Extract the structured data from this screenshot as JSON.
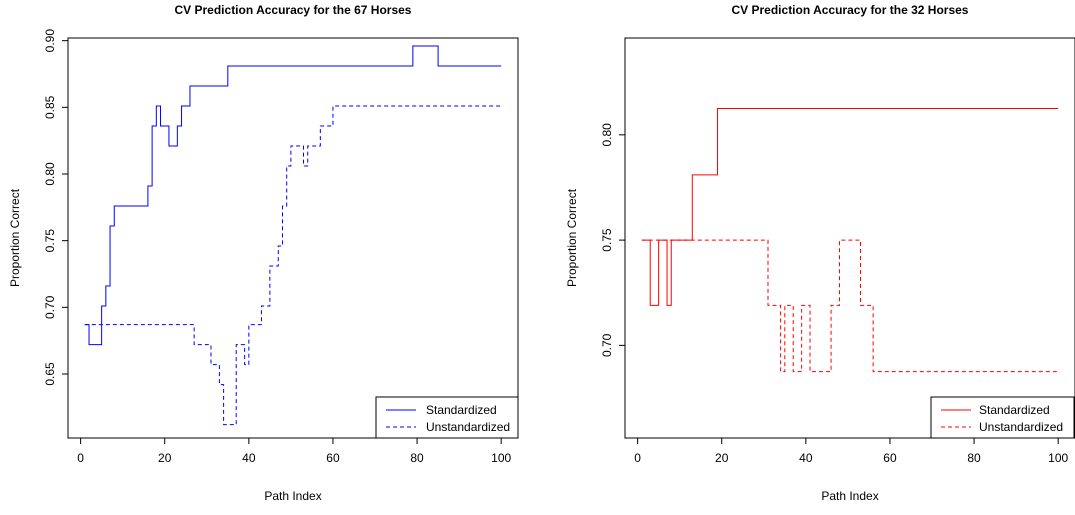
{
  "colors": {
    "left": "#0000ff",
    "right": "#ff0000",
    "axis": "#000000"
  },
  "chart_data": [
    {
      "type": "line",
      "title": "CV Prediction Accuracy for the 67 Horses",
      "xlabel": "Path Index",
      "ylabel": "Proportion Correct",
      "xticks": [
        "0",
        "20",
        "40",
        "60",
        "80",
        "100"
      ],
      "yticks": [
        "0.65",
        "0.70",
        "0.75",
        "0.80",
        "0.85",
        "0.90"
      ],
      "xlim": [
        -3,
        104
      ],
      "ylim": [
        0.602,
        0.902
      ],
      "legend_position": "bottom-right",
      "series": [
        {
          "name": "Standardized",
          "style": "solid",
          "color": "#0000ff",
          "x": [
            1,
            2,
            3,
            4,
            5,
            6,
            7,
            8,
            9,
            15,
            16,
            17,
            18,
            19,
            20,
            21,
            22,
            23,
            24,
            25,
            26,
            27,
            34,
            35,
            78,
            79,
            84,
            85,
            100
          ],
          "y": [
            0.687,
            0.672,
            0.672,
            0.672,
            0.701,
            0.716,
            0.761,
            0.776,
            0.776,
            0.776,
            0.791,
            0.836,
            0.851,
            0.836,
            0.836,
            0.821,
            0.821,
            0.836,
            0.851,
            0.851,
            0.866,
            0.866,
            0.866,
            0.881,
            0.881,
            0.896,
            0.896,
            0.881,
            0.881
          ]
        },
        {
          "name": "Unstandardized",
          "style": "dashed",
          "color": "#0000ff",
          "x": [
            1,
            26,
            27,
            30,
            31,
            32,
            33,
            34,
            35,
            36,
            37,
            38,
            39,
            40,
            41,
            42,
            43,
            44,
            45,
            46,
            47,
            48,
            49,
            50,
            51,
            52,
            53,
            54,
            55,
            56,
            57,
            58,
            59,
            60,
            61,
            100
          ],
          "y": [
            0.687,
            0.687,
            0.672,
            0.672,
            0.657,
            0.657,
            0.642,
            0.612,
            0.612,
            0.612,
            0.672,
            0.672,
            0.657,
            0.687,
            0.687,
            0.687,
            0.701,
            0.701,
            0.731,
            0.731,
            0.746,
            0.776,
            0.806,
            0.821,
            0.821,
            0.821,
            0.806,
            0.821,
            0.821,
            0.821,
            0.836,
            0.836,
            0.836,
            0.851,
            0.851,
            0.851
          ]
        }
      ]
    },
    {
      "type": "line",
      "title": "CV Prediction Accuracy for the 32 Horses",
      "xlabel": "Path Index",
      "ylabel": "Proportion Correct",
      "xticks": [
        "0",
        "20",
        "40",
        "60",
        "80",
        "100"
      ],
      "yticks": [
        "0.70",
        "0.75",
        "0.80"
      ],
      "xlim": [
        -3,
        104
      ],
      "ylim": [
        0.656,
        0.846
      ],
      "legend_position": "bottom-right",
      "series": [
        {
          "name": "Standardized",
          "style": "solid",
          "color": "#ff0000",
          "x": [
            1,
            2,
            3,
            4,
            5,
            6,
            7,
            8,
            12,
            13,
            18,
            19,
            100
          ],
          "y": [
            0.75,
            0.75,
            0.719,
            0.719,
            0.75,
            0.75,
            0.719,
            0.75,
            0.75,
            0.781,
            0.781,
            0.8125,
            0.8125
          ]
        },
        {
          "name": "Unstandardized",
          "style": "dashed",
          "color": "#ff0000",
          "x": [
            1,
            30,
            31,
            33,
            34,
            35,
            36,
            37,
            38,
            39,
            40,
            41,
            44,
            45,
            46,
            47,
            48,
            49,
            52,
            53,
            55,
            56,
            100
          ],
          "y": [
            0.75,
            0.75,
            0.719,
            0.719,
            0.6875,
            0.719,
            0.719,
            0.6875,
            0.6875,
            0.719,
            0.719,
            0.6875,
            0.6875,
            0.6875,
            0.719,
            0.719,
            0.75,
            0.75,
            0.75,
            0.719,
            0.719,
            0.6875,
            0.6875
          ]
        }
      ]
    }
  ]
}
